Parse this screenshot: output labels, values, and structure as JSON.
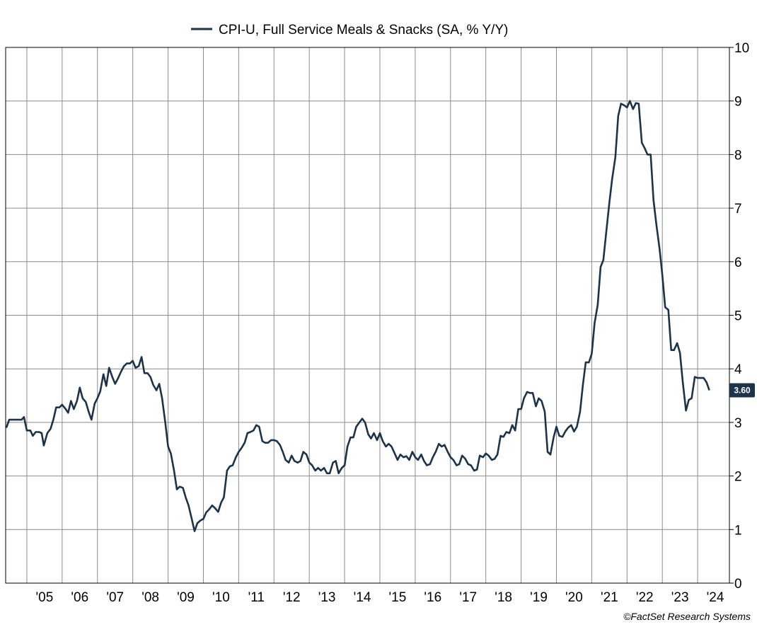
{
  "legend": {
    "label": "CPI-U, Full Service Meals & Snacks (SA, % Y/Y)"
  },
  "credit": "©FactSet Research Systems",
  "colors": {
    "series": "#1c3349",
    "grid": "#8c8c8c",
    "frame": "#000000",
    "badge": "#1c3349"
  },
  "chart_data": {
    "type": "line",
    "title": "",
    "xlabel": "",
    "ylabel": "",
    "legend_position": "top-center",
    "grid": true,
    "y_axis_side": "right",
    "xlim": [
      2004.4,
      2024.9
    ],
    "ylim": [
      0,
      10
    ],
    "y_ticks": [
      "0",
      "1",
      "2",
      "3",
      "4",
      "5",
      "6",
      "7",
      "8",
      "9",
      "10"
    ],
    "x_ticks": [
      {
        "label": "'05",
        "x": 2005.5
      },
      {
        "label": "'06",
        "x": 2006.5
      },
      {
        "label": "'07",
        "x": 2007.5
      },
      {
        "label": "'08",
        "x": 2008.5
      },
      {
        "label": "'09",
        "x": 2009.5
      },
      {
        "label": "'10",
        "x": 2010.5
      },
      {
        "label": "'11",
        "x": 2011.5
      },
      {
        "label": "'12",
        "x": 2012.5
      },
      {
        "label": "'13",
        "x": 2013.5
      },
      {
        "label": "'14",
        "x": 2014.5
      },
      {
        "label": "'15",
        "x": 2015.5
      },
      {
        "label": "'16",
        "x": 2016.5
      },
      {
        "label": "'17",
        "x": 2017.5
      },
      {
        "label": "'18",
        "x": 2018.5
      },
      {
        "label": "'19",
        "x": 2019.5
      },
      {
        "label": "'20",
        "x": 2020.5
      },
      {
        "label": "'21",
        "x": 2021.5
      },
      {
        "label": "'22",
        "x": 2022.5
      },
      {
        "label": "'23",
        "x": 2023.5
      },
      {
        "label": "'24",
        "x": 2024.5
      }
    ],
    "gridlines_x": [
      2005,
      2006,
      2007,
      2008,
      2009,
      2010,
      2011,
      2012,
      2013,
      2014,
      2015,
      2016,
      2017,
      2018,
      2019,
      2020,
      2021,
      2022,
      2023,
      2024
    ],
    "last_value_label": "3.60",
    "series": [
      {
        "name": "CPI-U, Full Service Meals & Snacks (SA, % Y/Y)",
        "points": [
          [
            2004.42,
            2.9
          ],
          [
            2004.5,
            3.05
          ],
          [
            2004.6,
            3.05
          ],
          [
            2004.75,
            3.05
          ],
          [
            2004.85,
            3.05
          ],
          [
            2004.92,
            3.1
          ],
          [
            2005.0,
            2.85
          ],
          [
            2005.1,
            2.85
          ],
          [
            2005.17,
            2.75
          ],
          [
            2005.25,
            2.82
          ],
          [
            2005.35,
            2.82
          ],
          [
            2005.42,
            2.8
          ],
          [
            2005.48,
            2.57
          ],
          [
            2005.58,
            2.8
          ],
          [
            2005.67,
            2.88
          ],
          [
            2005.75,
            3.05
          ],
          [
            2005.83,
            3.28
          ],
          [
            2005.92,
            3.28
          ],
          [
            2006.0,
            3.33
          ],
          [
            2006.1,
            3.25
          ],
          [
            2006.17,
            3.18
          ],
          [
            2006.25,
            3.4
          ],
          [
            2006.33,
            3.25
          ],
          [
            2006.42,
            3.4
          ],
          [
            2006.5,
            3.65
          ],
          [
            2006.58,
            3.45
          ],
          [
            2006.67,
            3.38
          ],
          [
            2006.75,
            3.2
          ],
          [
            2006.83,
            3.05
          ],
          [
            2006.92,
            3.35
          ],
          [
            2007.0,
            3.45
          ],
          [
            2007.08,
            3.58
          ],
          [
            2007.17,
            3.9
          ],
          [
            2007.25,
            3.68
          ],
          [
            2007.33,
            4.02
          ],
          [
            2007.42,
            3.85
          ],
          [
            2007.5,
            3.72
          ],
          [
            2007.58,
            3.82
          ],
          [
            2007.67,
            3.95
          ],
          [
            2007.75,
            4.05
          ],
          [
            2007.83,
            4.1
          ],
          [
            2007.92,
            4.1
          ],
          [
            2008.0,
            4.15
          ],
          [
            2008.08,
            4.02
          ],
          [
            2008.17,
            4.05
          ],
          [
            2008.25,
            4.22
          ],
          [
            2008.33,
            3.92
          ],
          [
            2008.42,
            3.92
          ],
          [
            2008.5,
            3.85
          ],
          [
            2008.58,
            3.7
          ],
          [
            2008.67,
            3.6
          ],
          [
            2008.75,
            3.72
          ],
          [
            2008.83,
            3.45
          ],
          [
            2008.92,
            3.0
          ],
          [
            2009.0,
            2.55
          ],
          [
            2009.08,
            2.42
          ],
          [
            2009.17,
            2.1
          ],
          [
            2009.25,
            1.75
          ],
          [
            2009.33,
            1.8
          ],
          [
            2009.42,
            1.78
          ],
          [
            2009.5,
            1.6
          ],
          [
            2009.58,
            1.45
          ],
          [
            2009.67,
            1.2
          ],
          [
            2009.75,
            0.97
          ],
          [
            2009.83,
            1.12
          ],
          [
            2009.92,
            1.17
          ],
          [
            2010.0,
            1.2
          ],
          [
            2010.08,
            1.32
          ],
          [
            2010.17,
            1.38
          ],
          [
            2010.25,
            1.45
          ],
          [
            2010.33,
            1.4
          ],
          [
            2010.42,
            1.33
          ],
          [
            2010.5,
            1.5
          ],
          [
            2010.58,
            1.6
          ],
          [
            2010.67,
            2.1
          ],
          [
            2010.75,
            2.18
          ],
          [
            2010.83,
            2.2
          ],
          [
            2010.92,
            2.35
          ],
          [
            2011.0,
            2.45
          ],
          [
            2011.08,
            2.52
          ],
          [
            2011.17,
            2.62
          ],
          [
            2011.25,
            2.8
          ],
          [
            2011.33,
            2.82
          ],
          [
            2011.42,
            2.85
          ],
          [
            2011.5,
            2.95
          ],
          [
            2011.58,
            2.92
          ],
          [
            2011.67,
            2.65
          ],
          [
            2011.75,
            2.62
          ],
          [
            2011.83,
            2.62
          ],
          [
            2011.92,
            2.67
          ],
          [
            2012.0,
            2.67
          ],
          [
            2012.08,
            2.65
          ],
          [
            2012.17,
            2.58
          ],
          [
            2012.25,
            2.45
          ],
          [
            2012.33,
            2.3
          ],
          [
            2012.42,
            2.25
          ],
          [
            2012.5,
            2.38
          ],
          [
            2012.58,
            2.28
          ],
          [
            2012.67,
            2.25
          ],
          [
            2012.75,
            2.28
          ],
          [
            2012.83,
            2.45
          ],
          [
            2012.92,
            2.4
          ],
          [
            2013.0,
            2.25
          ],
          [
            2013.08,
            2.2
          ],
          [
            2013.17,
            2.1
          ],
          [
            2013.25,
            2.15
          ],
          [
            2013.33,
            2.1
          ],
          [
            2013.42,
            2.15
          ],
          [
            2013.5,
            2.05
          ],
          [
            2013.58,
            2.05
          ],
          [
            2013.67,
            2.25
          ],
          [
            2013.75,
            2.28
          ],
          [
            2013.83,
            2.05
          ],
          [
            2013.92,
            2.15
          ],
          [
            2014.0,
            2.2
          ],
          [
            2014.08,
            2.55
          ],
          [
            2014.17,
            2.72
          ],
          [
            2014.25,
            2.72
          ],
          [
            2014.33,
            2.92
          ],
          [
            2014.42,
            3.0
          ],
          [
            2014.5,
            3.07
          ],
          [
            2014.58,
            3.0
          ],
          [
            2014.67,
            2.78
          ],
          [
            2014.75,
            2.7
          ],
          [
            2014.83,
            2.8
          ],
          [
            2014.92,
            2.67
          ],
          [
            2015.0,
            2.8
          ],
          [
            2015.08,
            2.65
          ],
          [
            2015.17,
            2.55
          ],
          [
            2015.25,
            2.6
          ],
          [
            2015.33,
            2.55
          ],
          [
            2015.42,
            2.42
          ],
          [
            2015.5,
            2.3
          ],
          [
            2015.58,
            2.4
          ],
          [
            2015.67,
            2.35
          ],
          [
            2015.75,
            2.37
          ],
          [
            2015.83,
            2.3
          ],
          [
            2015.92,
            2.45
          ],
          [
            2016.0,
            2.35
          ],
          [
            2016.08,
            2.3
          ],
          [
            2016.17,
            2.4
          ],
          [
            2016.25,
            2.28
          ],
          [
            2016.33,
            2.2
          ],
          [
            2016.42,
            2.22
          ],
          [
            2016.5,
            2.35
          ],
          [
            2016.58,
            2.45
          ],
          [
            2016.67,
            2.6
          ],
          [
            2016.75,
            2.55
          ],
          [
            2016.83,
            2.58
          ],
          [
            2016.92,
            2.45
          ],
          [
            2017.0,
            2.35
          ],
          [
            2017.08,
            2.3
          ],
          [
            2017.17,
            2.2
          ],
          [
            2017.25,
            2.22
          ],
          [
            2017.33,
            2.38
          ],
          [
            2017.42,
            2.32
          ],
          [
            2017.5,
            2.22
          ],
          [
            2017.58,
            2.2
          ],
          [
            2017.67,
            2.1
          ],
          [
            2017.75,
            2.12
          ],
          [
            2017.83,
            2.38
          ],
          [
            2017.92,
            2.35
          ],
          [
            2018.0,
            2.42
          ],
          [
            2018.08,
            2.38
          ],
          [
            2018.17,
            2.3
          ],
          [
            2018.25,
            2.32
          ],
          [
            2018.33,
            2.4
          ],
          [
            2018.42,
            2.75
          ],
          [
            2018.5,
            2.73
          ],
          [
            2018.58,
            2.82
          ],
          [
            2018.67,
            2.8
          ],
          [
            2018.75,
            2.95
          ],
          [
            2018.83,
            2.85
          ],
          [
            2018.92,
            3.25
          ],
          [
            2019.0,
            3.25
          ],
          [
            2019.08,
            3.45
          ],
          [
            2019.17,
            3.57
          ],
          [
            2019.25,
            3.55
          ],
          [
            2019.33,
            3.55
          ],
          [
            2019.42,
            3.3
          ],
          [
            2019.5,
            3.45
          ],
          [
            2019.58,
            3.4
          ],
          [
            2019.67,
            3.2
          ],
          [
            2019.75,
            2.45
          ],
          [
            2019.83,
            2.4
          ],
          [
            2019.92,
            2.72
          ],
          [
            2020.0,
            2.92
          ],
          [
            2020.08,
            2.75
          ],
          [
            2020.17,
            2.73
          ],
          [
            2020.25,
            2.83
          ],
          [
            2020.33,
            2.9
          ],
          [
            2020.42,
            2.95
          ],
          [
            2020.5,
            2.83
          ],
          [
            2020.58,
            2.92
          ],
          [
            2020.67,
            3.2
          ],
          [
            2020.75,
            3.7
          ],
          [
            2020.83,
            4.12
          ],
          [
            2020.92,
            4.12
          ],
          [
            2021.0,
            4.28
          ],
          [
            2021.08,
            4.85
          ],
          [
            2021.17,
            5.2
          ],
          [
            2021.25,
            5.9
          ],
          [
            2021.33,
            6.03
          ],
          [
            2021.42,
            6.6
          ],
          [
            2021.5,
            7.1
          ],
          [
            2021.58,
            7.55
          ],
          [
            2021.67,
            7.95
          ],
          [
            2021.75,
            8.72
          ],
          [
            2021.83,
            8.95
          ],
          [
            2021.92,
            8.92
          ],
          [
            2022.0,
            8.88
          ],
          [
            2022.08,
            9.0
          ],
          [
            2022.17,
            8.85
          ],
          [
            2022.25,
            8.96
          ],
          [
            2022.33,
            8.95
          ],
          [
            2022.42,
            8.22
          ],
          [
            2022.5,
            8.12
          ],
          [
            2022.58,
            8.0
          ],
          [
            2022.67,
            8.0
          ],
          [
            2022.75,
            7.15
          ],
          [
            2022.83,
            6.7
          ],
          [
            2022.92,
            6.25
          ],
          [
            2023.0,
            5.75
          ],
          [
            2023.08,
            5.15
          ],
          [
            2023.17,
            5.1
          ],
          [
            2023.25,
            4.35
          ],
          [
            2023.33,
            4.35
          ],
          [
            2023.42,
            4.48
          ],
          [
            2023.5,
            4.3
          ],
          [
            2023.58,
            3.75
          ],
          [
            2023.67,
            3.22
          ],
          [
            2023.75,
            3.42
          ],
          [
            2023.83,
            3.45
          ],
          [
            2023.92,
            3.85
          ],
          [
            2024.0,
            3.83
          ],
          [
            2024.08,
            3.83
          ],
          [
            2024.17,
            3.83
          ],
          [
            2024.25,
            3.75
          ],
          [
            2024.33,
            3.6
          ]
        ]
      }
    ]
  }
}
